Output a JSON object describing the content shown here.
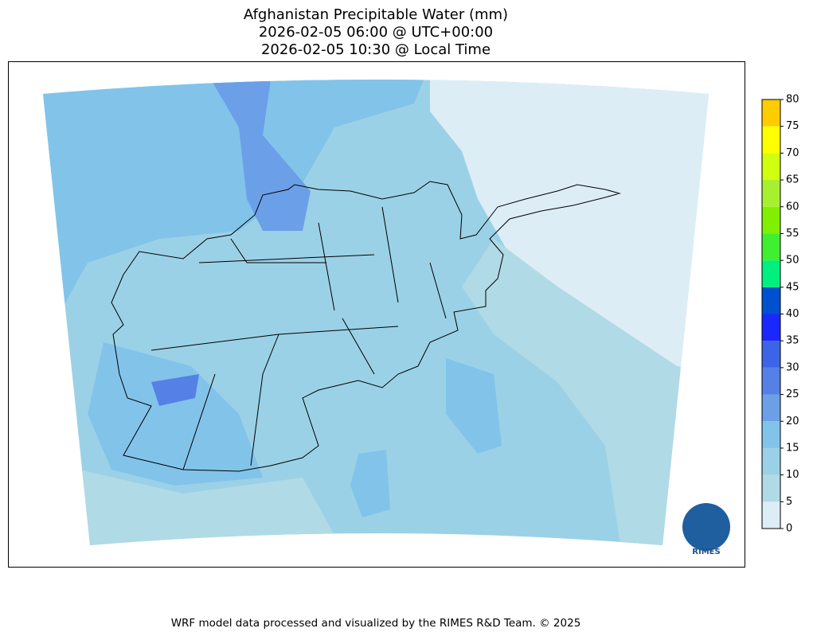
{
  "title": [
    "Afghanistan Precipitable Water (mm)",
    "2026-02-05 06:00 @ UTC+00:00",
    "2026-02-05 10:30 @ Local Time"
  ],
  "colorbar": {
    "ylim": [
      0,
      80
    ],
    "ticks": [
      0,
      5,
      10,
      15,
      20,
      25,
      30,
      35,
      40,
      45,
      50,
      55,
      60,
      65,
      70,
      75,
      80
    ],
    "colors": [
      "#dcedf6",
      "#b0dae6",
      "#9bd1e6",
      "#82c3ea",
      "#6b9fe8",
      "#5580e6",
      "#3c64e6",
      "#1a28ff",
      "#0050d0",
      "#00f07f",
      "#40f030",
      "#80f000",
      "#a6f030",
      "#d0ff10",
      "#ffff00",
      "#ffcc00"
    ]
  },
  "logo": "RIMES",
  "footer": "WRF model data processed and visualized by the RIMES R&D Team. © 2025"
}
